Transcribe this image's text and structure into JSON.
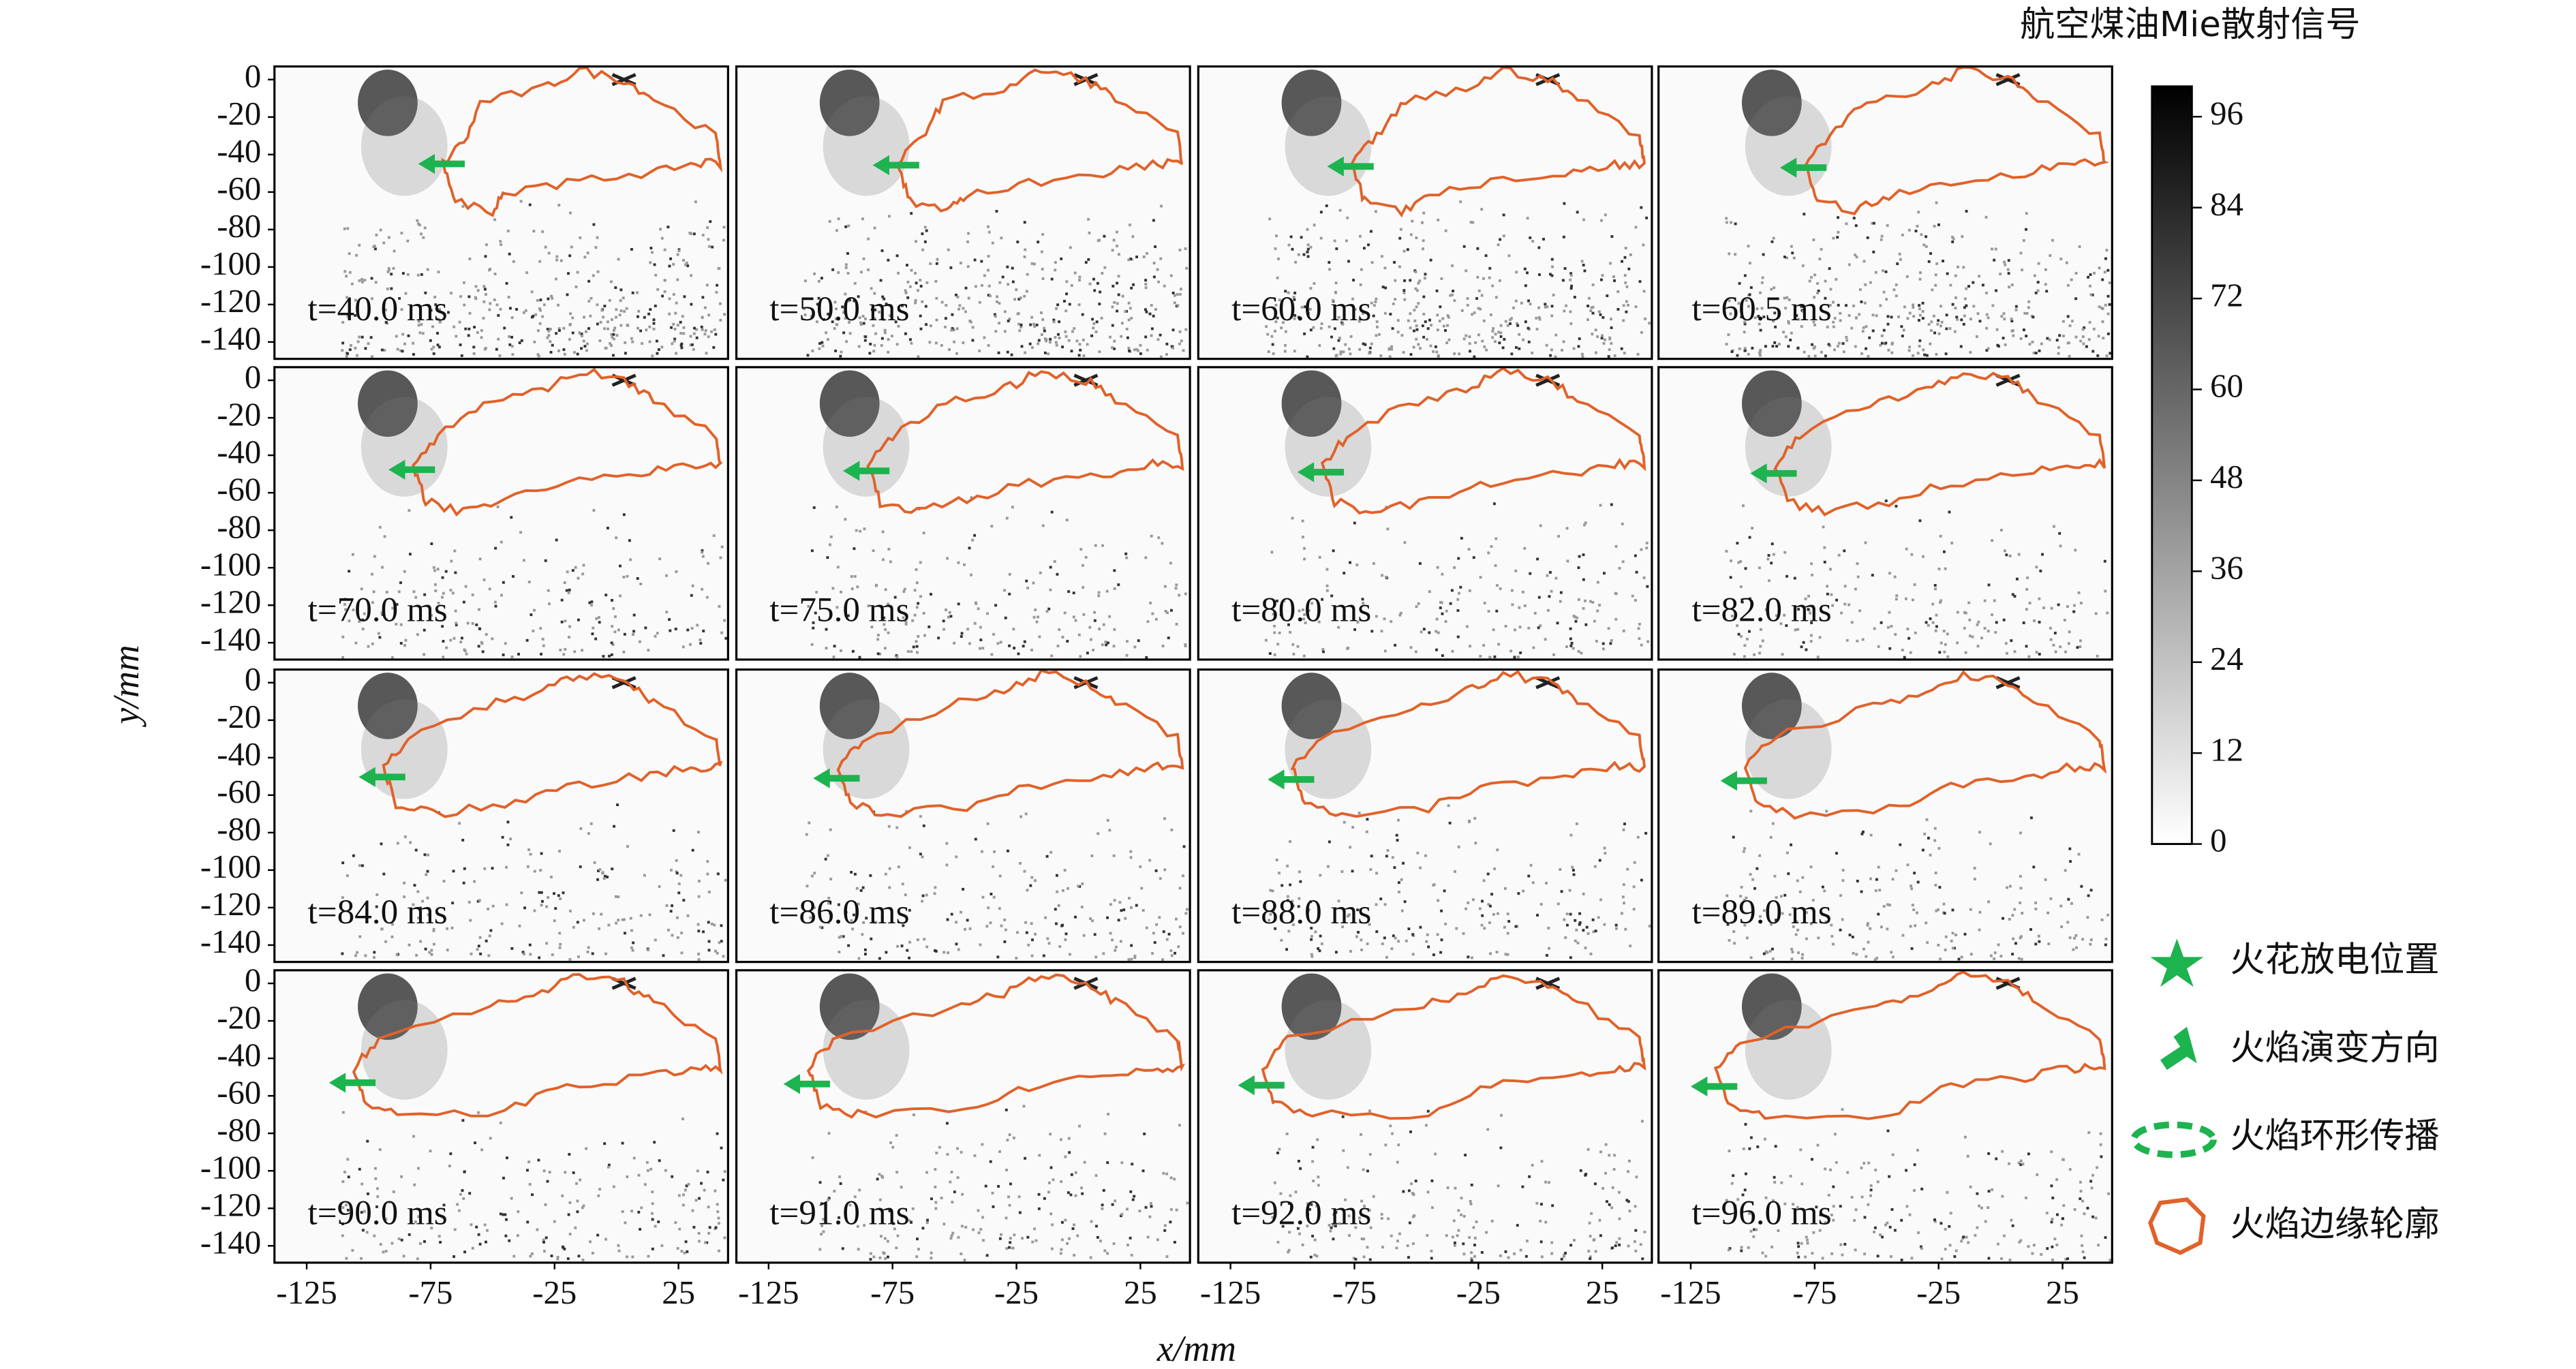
{
  "chart_data": {
    "type": "image-grid",
    "x_label": "x/mm",
    "y_label": "y/mm",
    "xlim": [
      -138,
      45
    ],
    "ylim": [
      -149,
      7
    ],
    "xticks": [
      -125,
      -75,
      -25,
      25
    ],
    "yticks": [
      0,
      -20,
      -40,
      -60,
      -80,
      -100,
      -120,
      -140
    ],
    "panels": [
      {
        "label": "t=40.0 ms"
      },
      {
        "label": "t=50.0 ms"
      },
      {
        "label": "t=60.0 ms"
      },
      {
        "label": "t=60.5 ms"
      },
      {
        "label": "t=70.0 ms"
      },
      {
        "label": "t=75.0 ms"
      },
      {
        "label": "t=80.0 ms"
      },
      {
        "label": "t=82.0 ms"
      },
      {
        "label": "t=84.0 ms"
      },
      {
        "label": "t=86.0 ms"
      },
      {
        "label": "t=88.0 ms"
      },
      {
        "label": "t=89.0 ms"
      },
      {
        "label": "t=90.0 ms"
      },
      {
        "label": "t=91.0 ms"
      },
      {
        "label": "t=92.0 ms"
      },
      {
        "label": "t=96.0 ms"
      }
    ],
    "colorbar": {
      "label": "航空煤油Mie散射信号",
      "lim": [
        0,
        100
      ],
      "ticks": [
        0,
        12,
        24,
        36,
        48,
        60,
        72,
        84,
        96
      ]
    },
    "contour_color": "#e0622a",
    "arrow_color": "#1db34f",
    "legend": [
      "火花放电位置",
      "火焰演变方向",
      "火焰环形传播",
      "火焰边缘轮廓"
    ]
  }
}
